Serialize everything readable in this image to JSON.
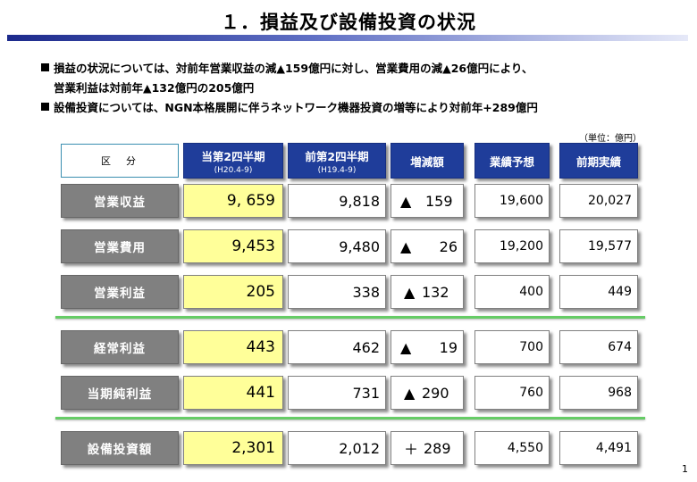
{
  "title": "１．損益及び設備投資の状況",
  "bullets": [
    "損益の状況については、対前年営業収益の減▲159億円に対し、営業費用の減▲26億円により、",
    "営業利益は対前年▲132億円の205億円",
    "設備投資については、NGN本格展開に伴うネットワーク機器投資の増等により対前年+289億円"
  ],
  "unit_note": "（単位：億円）",
  "table": {
    "headers": {
      "category": "区　分",
      "current": "当第2四半期",
      "current_sub": "(H20.4-9)",
      "previous": "前第2四半期",
      "previous_sub": "(H19.4-9)",
      "change": "増減額",
      "forecast": "業績予想",
      "prior_result": "前期実績"
    },
    "rows": [
      {
        "label": "営業収益",
        "current": "9, 659",
        "previous": "9,818",
        "change_mark": "▲",
        "change": "159",
        "forecast": "19,600",
        "prior_result": "20,027"
      },
      {
        "label": "営業費用",
        "current": "9,453",
        "previous": "9,480",
        "change_mark": "▲",
        "change": "26",
        "forecast": "19,200",
        "prior_result": "19,577"
      },
      {
        "label": "営業利益",
        "current": "205",
        "previous": "338",
        "change_mark": "▲",
        "change": "132",
        "forecast": "400",
        "prior_result": "449"
      },
      {
        "label": "経常利益",
        "current": "443",
        "previous": "462",
        "change_mark": "▲",
        "change": "19",
        "forecast": "700",
        "prior_result": "674"
      },
      {
        "label": "当期純利益",
        "current": "441",
        "previous": "731",
        "change_mark": "▲",
        "change": "290",
        "forecast": "760",
        "prior_result": "968"
      },
      {
        "label": "設備投資額",
        "current": "2,301",
        "previous": "2,012",
        "change_mark": "＋",
        "change": "289",
        "forecast": "4,550",
        "prior_result": "4,491"
      }
    ]
  },
  "page_number": "1",
  "colors": {
    "header_blue": "#1f3d9a",
    "current_fill": "#ffff99",
    "label_gray": "#808080",
    "separator_green": "#66cc66"
  }
}
